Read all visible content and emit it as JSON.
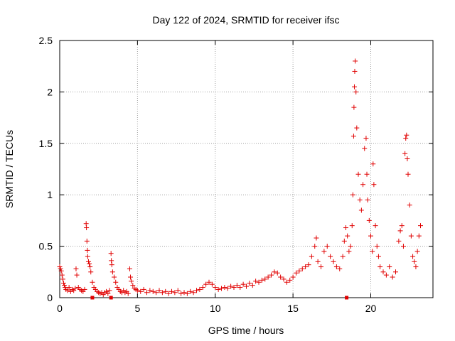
{
  "chart_data": {
    "type": "scatter",
    "title": "Day 122 of 2024, SRMTID for receiver ifsc",
    "xlabel": "GPS time / hours",
    "ylabel": "SRMTID / TECUs",
    "xlim": [
      0,
      24
    ],
    "ylim": [
      0,
      2.5
    ],
    "xticks": [
      0,
      5,
      10,
      15,
      20
    ],
    "xtick_labels": [
      "0",
      "5",
      "10",
      "15",
      "20"
    ],
    "yticks": [
      0,
      0.5,
      1,
      1.5,
      2,
      2.5
    ],
    "ytick_labels": [
      "0",
      "0.5",
      "1",
      "1.5",
      "2",
      "2.5"
    ],
    "grid": true,
    "marker": "+",
    "series": [
      {
        "name": "SRMTID",
        "color": "#e00000",
        "points": [
          [
            0.0,
            0.3
          ],
          [
            0.05,
            0.28
          ],
          [
            0.1,
            0.26
          ],
          [
            0.15,
            0.22
          ],
          [
            0.2,
            0.18
          ],
          [
            0.25,
            0.14
          ],
          [
            0.3,
            0.12
          ],
          [
            0.35,
            0.1
          ],
          [
            0.4,
            0.08
          ],
          [
            0.5,
            0.07
          ],
          [
            0.6,
            0.1
          ],
          [
            0.7,
            0.06
          ],
          [
            0.8,
            0.08
          ],
          [
            0.9,
            0.07
          ],
          [
            1.0,
            0.09
          ],
          [
            1.05,
            0.28
          ],
          [
            1.1,
            0.22
          ],
          [
            1.2,
            0.1
          ],
          [
            1.3,
            0.08
          ],
          [
            1.4,
            0.07
          ],
          [
            1.5,
            0.06
          ],
          [
            1.6,
            0.08
          ],
          [
            1.7,
            0.72
          ],
          [
            1.72,
            0.68
          ],
          [
            1.75,
            0.55
          ],
          [
            1.78,
            0.46
          ],
          [
            1.8,
            0.4
          ],
          [
            1.85,
            0.35
          ],
          [
            1.9,
            0.33
          ],
          [
            1.95,
            0.3
          ],
          [
            2.0,
            0.25
          ],
          [
            2.1,
            0.15
          ],
          [
            2.2,
            0.1
          ],
          [
            2.3,
            0.08
          ],
          [
            2.4,
            0.06
          ],
          [
            2.5,
            0.05
          ],
          [
            2.6,
            0.04
          ],
          [
            2.7,
            0.05
          ],
          [
            2.8,
            0.03
          ],
          [
            2.9,
            0.05
          ],
          [
            3.0,
            0.06
          ],
          [
            3.1,
            0.04
          ],
          [
            3.2,
            0.07
          ],
          [
            3.3,
            0.43
          ],
          [
            3.32,
            0.36
          ],
          [
            3.35,
            0.32
          ],
          [
            3.4,
            0.25
          ],
          [
            3.5,
            0.2
          ],
          [
            3.6,
            0.15
          ],
          [
            3.7,
            0.1
          ],
          [
            3.8,
            0.08
          ],
          [
            3.9,
            0.06
          ],
          [
            4.0,
            0.05
          ],
          [
            4.1,
            0.07
          ],
          [
            4.2,
            0.05
          ],
          [
            4.3,
            0.06
          ],
          [
            4.4,
            0.04
          ],
          [
            4.5,
            0.28
          ],
          [
            4.55,
            0.2
          ],
          [
            4.6,
            0.16
          ],
          [
            4.7,
            0.12
          ],
          [
            4.8,
            0.09
          ],
          [
            4.9,
            0.08
          ],
          [
            5.0,
            0.07
          ],
          [
            5.2,
            0.06
          ],
          [
            5.4,
            0.08
          ],
          [
            5.6,
            0.05
          ],
          [
            5.8,
            0.07
          ],
          [
            6.0,
            0.06
          ],
          [
            6.2,
            0.05
          ],
          [
            6.4,
            0.07
          ],
          [
            6.6,
            0.05
          ],
          [
            6.8,
            0.06
          ],
          [
            7.0,
            0.04
          ],
          [
            7.2,
            0.06
          ],
          [
            7.4,
            0.05
          ],
          [
            7.6,
            0.07
          ],
          [
            7.8,
            0.04
          ],
          [
            8.0,
            0.05
          ],
          [
            8.2,
            0.04
          ],
          [
            8.4,
            0.06
          ],
          [
            8.6,
            0.05
          ],
          [
            8.8,
            0.07
          ],
          [
            9.0,
            0.08
          ],
          [
            9.2,
            0.1
          ],
          [
            9.4,
            0.13
          ],
          [
            9.6,
            0.15
          ],
          [
            9.8,
            0.13
          ],
          [
            10.0,
            0.1
          ],
          [
            10.2,
            0.08
          ],
          [
            10.4,
            0.09
          ],
          [
            10.6,
            0.1
          ],
          [
            10.8,
            0.09
          ],
          [
            11.0,
            0.11
          ],
          [
            11.2,
            0.1
          ],
          [
            11.4,
            0.12
          ],
          [
            11.6,
            0.1
          ],
          [
            11.8,
            0.13
          ],
          [
            12.0,
            0.11
          ],
          [
            12.2,
            0.14
          ],
          [
            12.4,
            0.12
          ],
          [
            12.6,
            0.16
          ],
          [
            12.8,
            0.15
          ],
          [
            13.0,
            0.17
          ],
          [
            13.2,
            0.18
          ],
          [
            13.4,
            0.2
          ],
          [
            13.6,
            0.22
          ],
          [
            13.8,
            0.25
          ],
          [
            14.0,
            0.24
          ],
          [
            14.2,
            0.2
          ],
          [
            14.4,
            0.18
          ],
          [
            14.6,
            0.15
          ],
          [
            14.8,
            0.17
          ],
          [
            15.0,
            0.2
          ],
          [
            15.2,
            0.24
          ],
          [
            15.4,
            0.26
          ],
          [
            15.6,
            0.28
          ],
          [
            15.8,
            0.3
          ],
          [
            16.0,
            0.32
          ],
          [
            16.2,
            0.4
          ],
          [
            16.4,
            0.5
          ],
          [
            16.5,
            0.58
          ],
          [
            16.6,
            0.35
          ],
          [
            16.8,
            0.3
          ],
          [
            17.0,
            0.45
          ],
          [
            17.2,
            0.5
          ],
          [
            17.4,
            0.4
          ],
          [
            17.6,
            0.35
          ],
          [
            17.8,
            0.3
          ],
          [
            18.0,
            0.28
          ],
          [
            18.2,
            0.4
          ],
          [
            18.3,
            0.55
          ],
          [
            18.4,
            0.68
          ],
          [
            18.5,
            0.6
          ],
          [
            18.6,
            0.45
          ],
          [
            18.7,
            0.5
          ],
          [
            18.8,
            0.7
          ],
          [
            18.85,
            1.0
          ],
          [
            18.9,
            1.57
          ],
          [
            18.92,
            1.85
          ],
          [
            18.95,
            2.05
          ],
          [
            18.97,
            2.2
          ],
          [
            19.0,
            2.3
          ],
          [
            19.05,
            2.0
          ],
          [
            19.1,
            1.65
          ],
          [
            19.2,
            1.2
          ],
          [
            19.3,
            0.95
          ],
          [
            19.4,
            0.85
          ],
          [
            19.5,
            1.1
          ],
          [
            19.6,
            1.45
          ],
          [
            19.7,
            1.55
          ],
          [
            19.75,
            1.2
          ],
          [
            19.8,
            0.95
          ],
          [
            19.9,
            0.75
          ],
          [
            20.0,
            0.6
          ],
          [
            20.1,
            0.45
          ],
          [
            20.15,
            1.3
          ],
          [
            20.2,
            1.1
          ],
          [
            20.3,
            0.7
          ],
          [
            20.4,
            0.5
          ],
          [
            20.5,
            0.4
          ],
          [
            20.6,
            0.3
          ],
          [
            20.8,
            0.25
          ],
          [
            21.0,
            0.22
          ],
          [
            21.2,
            0.3
          ],
          [
            21.4,
            0.2
          ],
          [
            21.6,
            0.25
          ],
          [
            21.8,
            0.55
          ],
          [
            21.9,
            0.65
          ],
          [
            22.0,
            0.7
          ],
          [
            22.1,
            0.5
          ],
          [
            22.2,
            1.4
          ],
          [
            22.25,
            1.55
          ],
          [
            22.3,
            1.58
          ],
          [
            22.35,
            1.35
          ],
          [
            22.4,
            1.2
          ],
          [
            22.5,
            0.9
          ],
          [
            22.6,
            0.6
          ],
          [
            22.7,
            0.4
          ],
          [
            22.8,
            0.35
          ],
          [
            22.9,
            0.3
          ],
          [
            23.0,
            0.45
          ],
          [
            23.1,
            0.6
          ],
          [
            23.2,
            0.7
          ]
        ],
        "outliers_square": [
          [
            2.1,
            0.0
          ],
          [
            3.3,
            0.0
          ],
          [
            18.45,
            0.0
          ]
        ]
      }
    ]
  }
}
